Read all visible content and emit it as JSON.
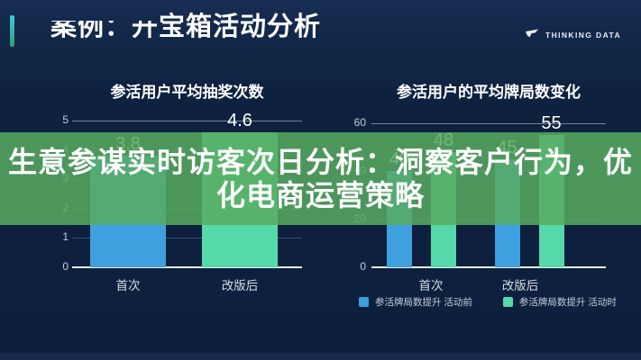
{
  "header": {
    "title_prefix": "案例：开",
    "title_main": "宝箱活动分析",
    "logo_text": "THINKING DATA"
  },
  "overlay": {
    "line1": "生意参谋实时访客次日分析：洞察客户行为，优",
    "line2": "化电商运营策略"
  },
  "colors": {
    "background": "#0d1f3c",
    "accent_bar_top": "#45c8e0",
    "accent_bar_bottom": "#2e9d74",
    "bar_blue": "#3ea0de",
    "bar_mint": "#55d9a9",
    "overlay_green": "rgba(88,172,96,0.85)",
    "grid_line": "#c9d7ea",
    "tick_text": "#c3cedb"
  },
  "chart_data": [
    {
      "type": "bar",
      "title": "参活用户平均抽奖次数",
      "categories": [
        "首次",
        "改版后"
      ],
      "values": [
        3.8,
        4.6
      ],
      "bar_colors": [
        "#3ea0de",
        "#55d9a9"
      ],
      "ylim": [
        0,
        5
      ],
      "yticks": [
        0,
        1,
        2,
        3,
        4,
        5
      ],
      "grid": true,
      "legend_position": null
    },
    {
      "type": "bar",
      "title": "参活用户的平均牌局数变化",
      "categories": [
        "首次",
        "改版后"
      ],
      "series": [
        {
          "name": "参活牌局数提升 活动前",
          "color": "#3ea0de",
          "values": [
            40,
            45
          ]
        },
        {
          "name": "参活牌局数提升 活动时",
          "color": "#55d9a9",
          "values": [
            48,
            55
          ]
        }
      ],
      "ylim": [
        0,
        60
      ],
      "yticks": [
        0,
        20,
        40,
        60
      ],
      "grid": true,
      "legend_position": "bottom"
    }
  ]
}
